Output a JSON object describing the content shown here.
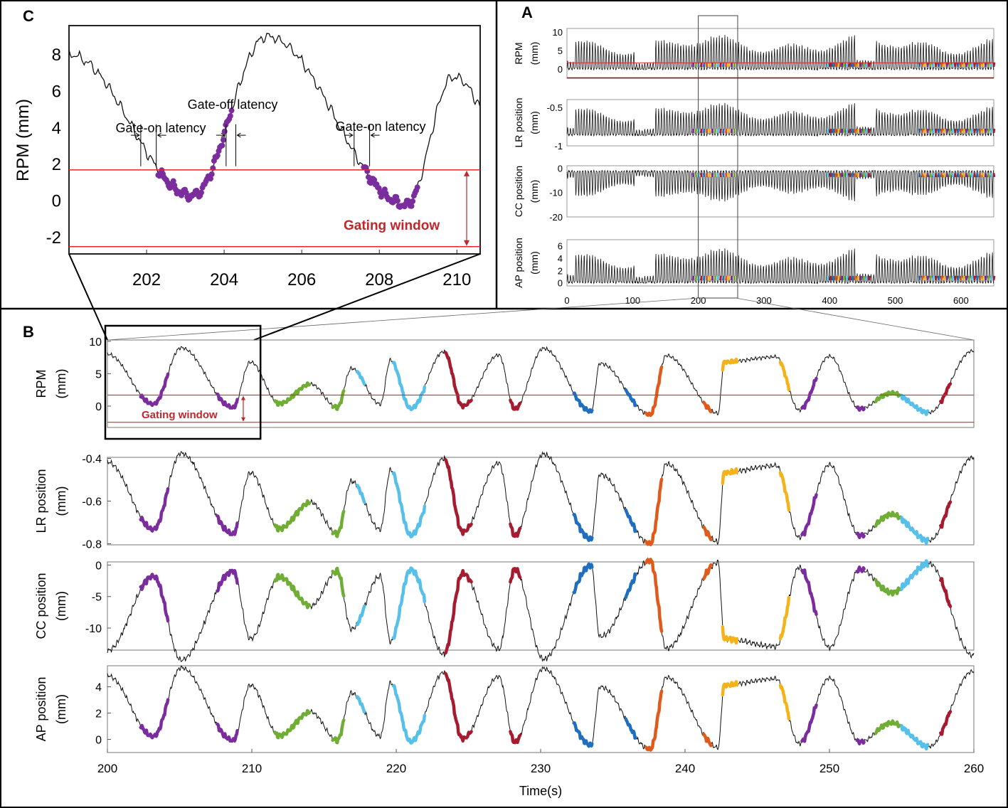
{
  "figure": {
    "panels": [
      "A",
      "B",
      "C"
    ],
    "colors": {
      "trace": "#111111",
      "threshold": "#e8252a",
      "gating_label": "#c0272d",
      "segments": [
        "#7b2d9e",
        "#6fad35",
        "#56c0ea",
        "#a51c30",
        "#1f6fbe",
        "#e05a1c",
        "#f4b31b"
      ]
    }
  },
  "chart_data": [
    {
      "id": "A",
      "type": "line",
      "title": "",
      "xlabel": "",
      "x_range": [
        0,
        650
      ],
      "x_ticks": [
        0,
        100,
        200,
        300,
        400,
        500,
        600
      ],
      "zoom_window": [
        200,
        260
      ],
      "subplots": [
        {
          "ylabel": [
            "RPM",
            "(mm)"
          ],
          "ylim": [
            -2.5,
            11
          ],
          "yticks": [
            0,
            5,
            10
          ],
          "threshold_lines": [
            1.7,
            -2.5
          ]
        },
        {
          "ylabel": [
            "LR position",
            "(mm)"
          ],
          "ylim": [
            -1.0,
            -0.4
          ],
          "yticks": [
            -0.5,
            -1
          ]
        },
        {
          "ylabel": [
            "CC position",
            "(mm)"
          ],
          "ylim": [
            -20,
            1
          ],
          "yticks": [
            0,
            -10,
            -20
          ]
        },
        {
          "ylabel": [
            "AP position",
            "(mm)"
          ],
          "ylim": [
            -0.5,
            7
          ],
          "yticks": [
            0,
            2,
            4,
            6
          ]
        }
      ]
    },
    {
      "id": "B",
      "type": "line",
      "title": "",
      "xlabel": "Time(s)",
      "x_range": [
        200,
        260
      ],
      "x_ticks": [
        200,
        210,
        220,
        230,
        240,
        250,
        260
      ],
      "breathing_peaks": {
        "times": [
          200,
          205.1,
          209.9,
          214.1,
          216.9,
          219.6,
          223.3,
          227.1,
          230.2,
          234.1,
          238.7,
          242.7,
          246.3,
          250.0,
          254.3,
          259.9
        ],
        "rpm": [
          8.0,
          9.0,
          6.8,
          3.4,
          5.8,
          7.1,
          8.4,
          7.9,
          8.9,
          6.6,
          7.8,
          6.8,
          7.6,
          7.7,
          2.0,
          8.5
        ]
      },
      "breathing_troughs": {
        "times": [
          203.2,
          208.7,
          211.9,
          215.9,
          218.9,
          221.0,
          224.6,
          228.2,
          233.5,
          237.6,
          242.3,
          247.9,
          252.1,
          256.9
        ],
        "rpm": [
          0.3,
          -0.2,
          0.4,
          -0.2,
          0.3,
          -0.4,
          0.0,
          -0.4,
          -0.8,
          -1.3,
          -1.1,
          -0.6,
          -0.4,
          -1.0
        ]
      },
      "gated_segments": [
        {
          "start": 202.3,
          "end": 204.2,
          "color": "#7b2d9e"
        },
        {
          "start": 207.6,
          "end": 209.0,
          "color": "#7b2d9e"
        },
        {
          "start": 211.6,
          "end": 214.0,
          "color": "#6fad35"
        },
        {
          "start": 215.6,
          "end": 216.4,
          "color": "#6fad35"
        },
        {
          "start": 217.3,
          "end": 217.8,
          "color": "#56c0ea"
        },
        {
          "start": 219.8,
          "end": 222.0,
          "color": "#56c0ea"
        },
        {
          "start": 223.4,
          "end": 225.2,
          "color": "#a51c30"
        },
        {
          "start": 227.9,
          "end": 228.6,
          "color": "#a51c30"
        },
        {
          "start": 232.3,
          "end": 233.6,
          "color": "#1f6fbe"
        },
        {
          "start": 235.9,
          "end": 236.6,
          "color": "#1f6fbe"
        },
        {
          "start": 237.3,
          "end": 238.4,
          "color": "#e05a1c"
        },
        {
          "start": 241.3,
          "end": 241.8,
          "color": "#e05a1c"
        },
        {
          "start": 242.6,
          "end": 243.6,
          "color": "#f4b31b"
        },
        {
          "start": 246.6,
          "end": 247.2,
          "color": "#f4b31b"
        },
        {
          "start": 248.1,
          "end": 249.1,
          "color": "#7b2d9e"
        },
        {
          "start": 251.9,
          "end": 252.4,
          "color": "#7b2d9e"
        },
        {
          "start": 253.2,
          "end": 254.9,
          "color": "#6fad35"
        },
        {
          "start": 255.0,
          "end": 256.8,
          "color": "#56c0ea"
        },
        {
          "start": 257.7,
          "end": 258.4,
          "color": "#a51c30"
        }
      ],
      "gating_window": {
        "upper": 1.7,
        "lower": -2.5,
        "label": "Gating window"
      },
      "subplots": [
        {
          "key": "rpm",
          "ylabel": [
            "RPM",
            "(mm)"
          ],
          "ylim": [
            -3.3,
            10.2
          ],
          "yticks": [
            10,
            5,
            0
          ],
          "slope": 1,
          "offset": 0
        },
        {
          "key": "lr",
          "ylabel": [
            "LR position",
            "(mm)"
          ],
          "ylim": [
            -0.805,
            -0.395
          ],
          "yticks": [
            -0.4,
            -0.6,
            -0.8
          ],
          "slope": 0.041,
          "offset": -0.745
        },
        {
          "key": "cc",
          "ylabel": [
            "CC position",
            "(mm)"
          ],
          "ylim": [
            -13.5,
            0.5
          ],
          "yticks": [
            0,
            -5,
            -10
          ],
          "slope": -1.53,
          "offset": -1.3
        },
        {
          "key": "ap",
          "ylabel": [
            "AP position",
            "(mm)"
          ],
          "ylim": [
            -1.0,
            5.6
          ],
          "yticks": [
            4,
            2,
            0
          ],
          "slope": 0.6,
          "offset": 0.05
        }
      ]
    },
    {
      "id": "C",
      "type": "line",
      "title": "",
      "ylabel": "RPM (mm)",
      "xlabel": "",
      "x_range": [
        200.0,
        210.6
      ],
      "ylim": [
        -2.9,
        9.6
      ],
      "x_ticks": [
        202,
        204,
        206,
        208,
        210
      ],
      "y_ticks": [
        8,
        6,
        4,
        2,
        0,
        -2
      ],
      "gating_window": {
        "upper": 1.7,
        "lower": -2.5,
        "label": "Gating window"
      },
      "annotations": [
        {
          "text": "Gate-off latency",
          "x": 204.0,
          "y": 3.9
        },
        {
          "text": "Gate-on latency",
          "x": 201.7,
          "y": 3.6
        },
        {
          "text": "Gate-on latency",
          "x": 207.6,
          "y": 3.6
        }
      ],
      "latency_markers": [
        {
          "from": 201.85,
          "to": 202.25
        },
        {
          "from": 204.05,
          "to": 204.3
        },
        {
          "from": 207.35,
          "to": 207.75
        }
      ]
    }
  ]
}
